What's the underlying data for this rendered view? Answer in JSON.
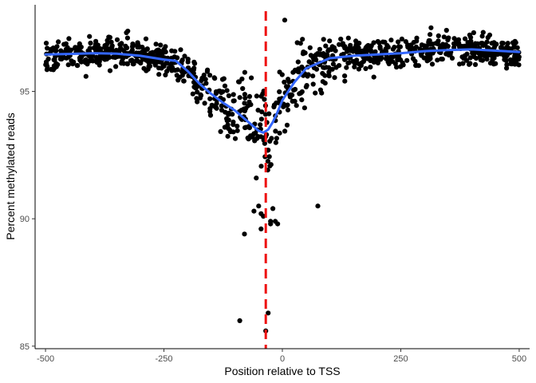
{
  "chart_data": {
    "type": "scatter",
    "xlabel": "Position relative to TSS",
    "ylabel": "Percent methylated reads",
    "xlim": [
      -522,
      522
    ],
    "ylim": [
      84.9,
      98.4
    ],
    "x_ticks": [
      -500,
      -250,
      0,
      250,
      500
    ],
    "x_tick_labels": [
      "-500",
      "-250",
      "0",
      "250",
      "500"
    ],
    "y_ticks": [
      85,
      90,
      95
    ],
    "y_tick_labels": [
      "85",
      "90",
      "95"
    ],
    "grid": false,
    "legend": "none",
    "colors": {
      "points": "#000000",
      "smooth": "#3366ff",
      "vline": "#ee1111"
    },
    "vline_x": -35,
    "smooth": {
      "x": [
        -500,
        -450,
        -400,
        -350,
        -300,
        -250,
        -225,
        -200,
        -175,
        -150,
        -125,
        -100,
        -75,
        -50,
        -40,
        -30,
        -20,
        -10,
        0,
        25,
        50,
        75,
        100,
        150,
        200,
        250,
        300,
        350,
        400,
        450,
        500
      ],
      "y": [
        96.45,
        96.47,
        96.5,
        96.48,
        96.4,
        96.25,
        96.2,
        95.8,
        95.3,
        94.9,
        94.55,
        94.25,
        93.85,
        93.45,
        93.38,
        93.5,
        93.8,
        94.2,
        94.65,
        95.35,
        95.9,
        96.1,
        96.3,
        96.4,
        96.45,
        96.5,
        96.58,
        96.62,
        96.65,
        96.6,
        96.55
      ]
    },
    "outliers": {
      "x": [
        -90,
        -80,
        -60,
        -55,
        -50,
        -45,
        -45,
        -40,
        -35,
        -30,
        -25,
        -25,
        -20,
        -15,
        -10,
        5,
        75
      ],
      "y": [
        86,
        89.4,
        90.3,
        91.6,
        90.5,
        90.2,
        89.6,
        90.1,
        85.6,
        86.3,
        89.9,
        89.8,
        90.4,
        89.9,
        89.8,
        97.8,
        90.5
      ]
    },
    "n_points": 1000
  }
}
